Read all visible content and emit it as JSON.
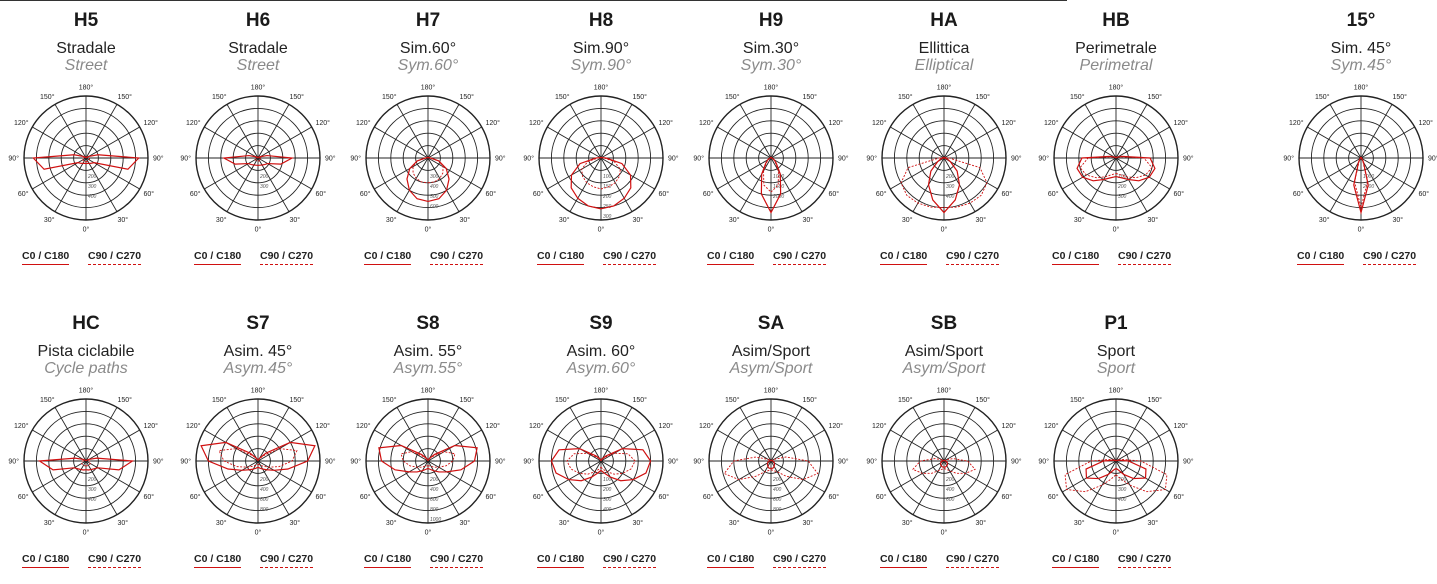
{
  "legend": {
    "c0": "C0 / C180",
    "c90": "C90 / C270"
  },
  "angle_labels": [
    "0°",
    "30°",
    "60°",
    "90°",
    "120°",
    "150°",
    "180°",
    "150°",
    "120°",
    "90°",
    "60°",
    "30°"
  ],
  "panels": [
    {
      "id": "H5",
      "it": "Stradale",
      "en": "Street",
      "radial": [
        "200",
        "300",
        "400"
      ],
      "c0": [
        9,
        9,
        10,
        12,
        15,
        70,
        85,
        20,
        5,
        2,
        1,
        1,
        1
      ],
      "c90": [
        6,
        6,
        6,
        6,
        6,
        6,
        5,
        3,
        2,
        1,
        1,
        1,
        1
      ]
    },
    {
      "id": "H6",
      "it": "Stradale",
      "en": "Street",
      "radial": [
        "200",
        "300"
      ],
      "c0": [
        12,
        12,
        13,
        15,
        18,
        38,
        55,
        15,
        4,
        2,
        1,
        1,
        1
      ],
      "c90": [
        5,
        5,
        5,
        5,
        5,
        4,
        3,
        2,
        1,
        1,
        1,
        1,
        1
      ]
    },
    {
      "id": "H7",
      "it": "Sim.60°",
      "en": "Sym.60°",
      "radial": [
        "300",
        "400",
        "500",
        "600"
      ],
      "c0": [
        70,
        68,
        60,
        48,
        34,
        18,
        4,
        2,
        1,
        1,
        1,
        1,
        1
      ],
      "c90": [
        40,
        40,
        38,
        34,
        28,
        18,
        4,
        2,
        1,
        1,
        1,
        1,
        1
      ]
    },
    {
      "id": "H8",
      "it": "Sim.90°",
      "en": "Sym.90°",
      "radial": [
        "100",
        "150",
        "200",
        "250",
        "300"
      ],
      "c0": [
        82,
        80,
        75,
        68,
        55,
        35,
        8,
        2,
        1,
        1,
        1,
        1,
        1
      ],
      "c90": [
        50,
        48,
        46,
        42,
        36,
        22,
        5,
        2,
        1,
        1,
        1,
        1,
        1
      ]
    },
    {
      "id": "H9",
      "it": "Sim.30°",
      "en": "Sym.30°",
      "radial": [
        "1000",
        "1500",
        "2000"
      ],
      "c0": [
        88,
        60,
        30,
        12,
        6,
        3,
        1,
        1,
        1,
        1,
        1,
        1,
        1
      ],
      "c90": [
        55,
        45,
        24,
        10,
        5,
        2,
        1,
        1,
        1,
        1,
        1,
        1,
        1
      ]
    },
    {
      "id": "HA",
      "it": "Ellittica",
      "en": "Elliptical",
      "radial": [
        "200",
        "300",
        "400"
      ],
      "c0": [
        88,
        70,
        50,
        30,
        12,
        5,
        1,
        1,
        1,
        1,
        1,
        1,
        1
      ],
      "c90": [
        80,
        82,
        84,
        85,
        80,
        60,
        8,
        2,
        1,
        1,
        1,
        1,
        1
      ]
    },
    {
      "id": "HB",
      "it": "Perimetrale",
      "en": "Perimetral",
      "radial": [
        "100",
        "200",
        "300"
      ],
      "c0": [
        30,
        33,
        40,
        52,
        62,
        65,
        55,
        10,
        3,
        1,
        1,
        1,
        1
      ],
      "c90": [
        25,
        28,
        35,
        45,
        55,
        60,
        45,
        8,
        3,
        1,
        1,
        1,
        1
      ]
    },
    {
      "id": "15°",
      "it": "Sim. 45°",
      "en": "Sym.45°",
      "radial": [
        "1000",
        "2000"
      ],
      "c0": [
        88,
        45,
        8,
        3,
        1,
        1,
        1,
        1,
        1,
        1,
        1,
        1,
        1
      ],
      "c90": [
        80,
        40,
        6,
        2,
        1,
        1,
        1,
        1,
        1,
        1,
        1,
        1,
        1
      ]
    },
    {
      "id": "HC",
      "it": "Pista ciclabile",
      "en": "Cycle paths",
      "radial": [
        "200",
        "300",
        "400"
      ],
      "c0": [
        14,
        15,
        16,
        18,
        22,
        55,
        75,
        18,
        5,
        2,
        1,
        1,
        1
      ],
      "c90": [
        8,
        8,
        8,
        8,
        8,
        7,
        6,
        3,
        2,
        1,
        1,
        1,
        1
      ]
    },
    {
      "id": "S7",
      "it": "Asim. 45°",
      "en": "Asym.45°",
      "radial": [
        "200",
        "400",
        "600",
        "800"
      ],
      "c0": [
        10,
        12,
        15,
        20,
        30,
        50,
        80,
        95,
        60,
        18,
        5,
        1,
        1
      ],
      "c90": [
        5,
        6,
        8,
        12,
        20,
        35,
        55,
        65,
        40,
        12,
        4,
        1,
        1
      ]
    },
    {
      "id": "S8",
      "it": "Asim. 55°",
      "en": "Asym.55°",
      "radial": [
        "200",
        "400",
        "600",
        "800",
        "1000"
      ],
      "c0": [
        12,
        14,
        18,
        25,
        35,
        55,
        75,
        82,
        50,
        15,
        5,
        1,
        1
      ],
      "c90": [
        8,
        8,
        10,
        14,
        20,
        30,
        40,
        45,
        30,
        10,
        4,
        1,
        1
      ]
    },
    {
      "id": "S9",
      "it": "Asim. 60°",
      "en": "Asym.60°",
      "radial": [
        "100",
        "200",
        "300",
        "400"
      ],
      "c0": [
        15,
        20,
        30,
        45,
        60,
        75,
        80,
        70,
        40,
        12,
        4,
        1,
        1
      ],
      "c90": [
        10,
        14,
        20,
        30,
        40,
        50,
        55,
        45,
        25,
        8,
        3,
        1,
        1
      ]
    },
    {
      "id": "SA",
      "it": "Asim/Sport",
      "en": "Asym/Sport",
      "radial": [
        "200",
        "400",
        "600",
        "800"
      ],
      "c0": [
        12,
        12,
        10,
        8,
        6,
        5,
        3,
        2,
        1,
        1,
        1,
        1,
        1
      ],
      "c90": [
        14,
        16,
        20,
        35,
        60,
        78,
        60,
        25,
        5,
        2,
        1,
        1,
        1
      ]
    },
    {
      "id": "SB",
      "it": "Asim/Sport",
      "en": "Asym/Sport",
      "radial": [
        "200",
        "400",
        "600"
      ],
      "c0": [
        10,
        10,
        9,
        8,
        6,
        5,
        3,
        2,
        1,
        1,
        1,
        1,
        1
      ],
      "c90": [
        12,
        14,
        18,
        28,
        40,
        52,
        38,
        15,
        4,
        2,
        1,
        1,
        1
      ]
    },
    {
      "id": "P1",
      "it": "Sport",
      "en": "Sport",
      "radial": [
        "200",
        "300",
        "400"
      ],
      "c0": [
        12,
        15,
        25,
        40,
        55,
        50,
        20,
        5,
        2,
        1,
        1,
        1,
        1
      ],
      "c90": [
        22,
        30,
        45,
        70,
        92,
        85,
        40,
        10,
        3,
        1,
        1,
        1,
        1
      ]
    }
  ]
}
